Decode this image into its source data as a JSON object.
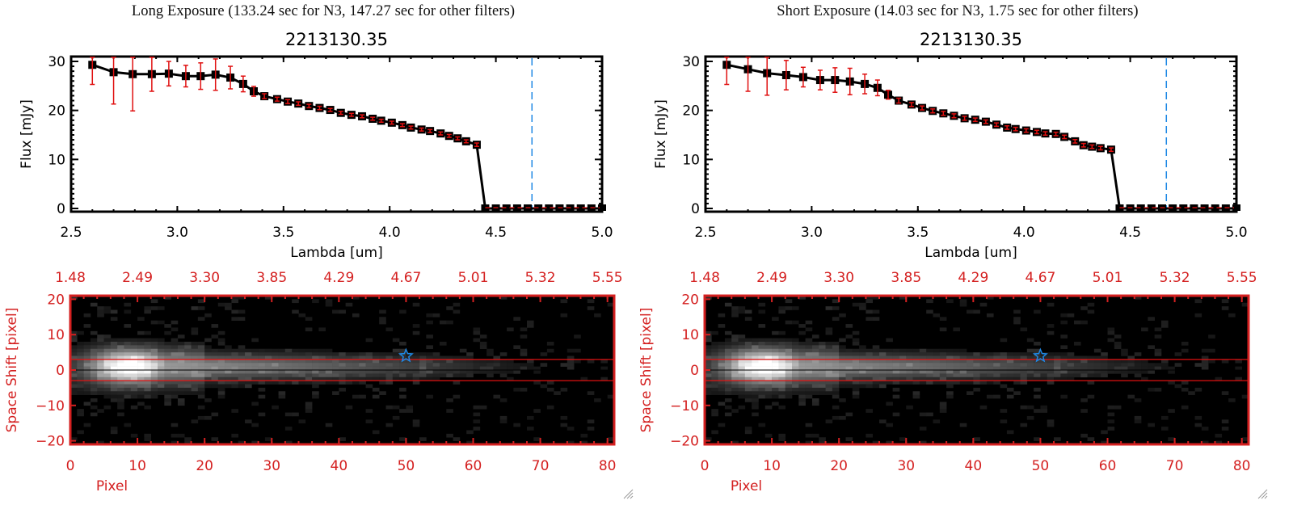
{
  "panels": [
    {
      "id": "long",
      "exposure_title": "Long Exposure (133.24 sec for N3, 147.27 sec for other filters)",
      "plot_title": "2213130.35"
    },
    {
      "id": "short",
      "exposure_title": "Short Exposure (14.03 sec for N3, 1.75 sec for other filters)",
      "plot_title": "2213130.35"
    }
  ],
  "colors": {
    "axis": "#000000",
    "errorbar": "#e01010",
    "image_axis": "#d42020",
    "marker_line": "#1e88e5",
    "aperture_line": "#e01010",
    "star": "#1e88e5"
  },
  "chart_data": [
    {
      "type": "line",
      "panel": "long",
      "title": "2213130.35",
      "xlabel": "Lambda [um]",
      "ylabel": "Flux [mJy]",
      "xlim": [
        2.5,
        5.0
      ],
      "ylim": [
        0,
        30
      ],
      "xticks": [
        "2.5",
        "3.0",
        "3.5",
        "4.0",
        "4.5",
        "5.0"
      ],
      "xtick_values": [
        2.5,
        3.0,
        3.5,
        4.0,
        4.5,
        5.0
      ],
      "yticks": [
        "0",
        "10",
        "20",
        "30"
      ],
      "ytick_values": [
        0,
        10,
        20,
        30
      ],
      "vline_x": 4.67,
      "zero_dashed_from": 4.45,
      "series": [
        {
          "name": "flux",
          "x": [
            2.6,
            2.7,
            2.79,
            2.88,
            2.96,
            3.04,
            3.11,
            3.18,
            3.25,
            3.31,
            3.36,
            3.41,
            3.47,
            3.52,
            3.57,
            3.62,
            3.67,
            3.72,
            3.77,
            3.82,
            3.87,
            3.92,
            3.96,
            4.01,
            4.06,
            4.1,
            4.15,
            4.19,
            4.24,
            4.28,
            4.32,
            4.36,
            4.41,
            4.45,
            4.5,
            4.55,
            4.6,
            4.65,
            4.7,
            4.75,
            4.8,
            4.85,
            4.9,
            4.95,
            5.0
          ],
          "y": [
            29.3,
            27.8,
            27.4,
            27.4,
            27.5,
            27.0,
            27.0,
            27.3,
            26.7,
            25.4,
            23.9,
            22.9,
            22.3,
            21.8,
            21.4,
            20.9,
            20.5,
            20.1,
            19.5,
            19.1,
            18.8,
            18.3,
            17.9,
            17.5,
            17.0,
            16.5,
            16.1,
            15.8,
            15.3,
            14.8,
            14.3,
            13.7,
            13.0,
            0,
            0,
            0,
            0,
            0,
            0,
            0,
            0,
            0,
            0,
            0,
            0
          ],
          "err": [
            4.0,
            6.5,
            7.5,
            3.5,
            2.5,
            2.2,
            2.7,
            3.2,
            2.3,
            1.6,
            1.0,
            0.5,
            0.4,
            0.4,
            0.35,
            0.35,
            0.35,
            0.3,
            0.3,
            0.3,
            0.3,
            0.3,
            0.3,
            0.3,
            0.3,
            0.3,
            0.3,
            0.3,
            0.3,
            0.3,
            0.3,
            0.3,
            0.35,
            0,
            0,
            0,
            0,
            0,
            0,
            0,
            0,
            0,
            0,
            0,
            0
          ]
        }
      ]
    },
    {
      "type": "line",
      "panel": "short",
      "title": "2213130.35",
      "xlabel": "Lambda [um]",
      "ylabel": "Flux [mJy]",
      "xlim": [
        2.5,
        5.0
      ],
      "ylim": [
        0,
        30
      ],
      "xticks": [
        "2.5",
        "3.0",
        "3.5",
        "4.0",
        "4.5",
        "5.0"
      ],
      "xtick_values": [
        2.5,
        3.0,
        3.5,
        4.0,
        4.5,
        5.0
      ],
      "yticks": [
        "0",
        "10",
        "20",
        "30"
      ],
      "ytick_values": [
        0,
        10,
        20,
        30
      ],
      "vline_x": 4.67,
      "zero_dashed_from": 4.45,
      "series": [
        {
          "name": "flux",
          "x": [
            2.6,
            2.7,
            2.79,
            2.88,
            2.96,
            3.04,
            3.11,
            3.18,
            3.25,
            3.31,
            3.36,
            3.41,
            3.47,
            3.52,
            3.57,
            3.62,
            3.67,
            3.72,
            3.77,
            3.82,
            3.87,
            3.92,
            3.96,
            4.01,
            4.06,
            4.1,
            4.15,
            4.19,
            4.24,
            4.28,
            4.32,
            4.36,
            4.41,
            4.45,
            4.5,
            4.55,
            4.6,
            4.65,
            4.7,
            4.75,
            4.8,
            4.85,
            4.9,
            4.95,
            5.0
          ],
          "y": [
            29.3,
            28.4,
            27.6,
            27.2,
            26.8,
            26.2,
            26.2,
            25.9,
            25.4,
            24.6,
            23.2,
            22.0,
            21.2,
            20.5,
            19.9,
            19.4,
            18.9,
            18.4,
            18.1,
            17.7,
            17.1,
            16.5,
            16.2,
            15.9,
            15.6,
            15.3,
            15.2,
            14.6,
            13.7,
            12.9,
            12.6,
            12.3,
            12.0,
            0,
            0,
            0,
            0,
            0,
            0,
            0,
            0,
            0,
            0,
            0,
            0
          ],
          "err": [
            4.0,
            4.5,
            4.5,
            3.0,
            2.0,
            2.0,
            2.5,
            2.7,
            2.0,
            1.6,
            0.9,
            0.5,
            0.4,
            0.4,
            0.4,
            0.4,
            0.4,
            0.4,
            0.35,
            0.35,
            0.35,
            0.35,
            0.35,
            0.35,
            0.35,
            0.35,
            0.35,
            0.35,
            0.35,
            0.35,
            0.35,
            0.35,
            0.35,
            0,
            0,
            0,
            0,
            0,
            0,
            0,
            0,
            0,
            0,
            0,
            0
          ]
        }
      ]
    },
    {
      "type": "heatmap",
      "panel": "long",
      "xlabel": "Pixel",
      "ylabel": "Space Shift [pixel]",
      "xlim": [
        0,
        81
      ],
      "ylim": [
        -21,
        21
      ],
      "xticks": [
        "0",
        "10",
        "20",
        "30",
        "40",
        "50",
        "60",
        "70",
        "80"
      ],
      "xtick_values": [
        0,
        10,
        20,
        30,
        40,
        50,
        60,
        70,
        80
      ],
      "yticks": [
        "-20",
        "-10",
        "0",
        "10",
        "20"
      ],
      "ytick_values": [
        -20,
        -10,
        0,
        10,
        20
      ],
      "top_ticks": [
        "1.48",
        "2.49",
        "3.30",
        "3.85",
        "4.29",
        "4.67",
        "5.01",
        "5.32",
        "5.55"
      ],
      "aperture_lines_y": [
        3,
        -3
      ],
      "center_line_y": 0,
      "star_marker": {
        "x": 50,
        "y": 4
      }
    },
    {
      "type": "heatmap",
      "panel": "short",
      "xlabel": "Pixel",
      "ylabel": "Space Shift [pixel]",
      "xlim": [
        0,
        81
      ],
      "ylim": [
        -21,
        21
      ],
      "xticks": [
        "0",
        "10",
        "20",
        "30",
        "40",
        "50",
        "60",
        "70",
        "80"
      ],
      "xtick_values": [
        0,
        10,
        20,
        30,
        40,
        50,
        60,
        70,
        80
      ],
      "yticks": [
        "-20",
        "-10",
        "0",
        "10",
        "20"
      ],
      "ytick_values": [
        -20,
        -10,
        0,
        10,
        20
      ],
      "top_ticks": [
        "1.48",
        "2.49",
        "3.30",
        "3.85",
        "4.29",
        "4.67",
        "5.01",
        "5.32",
        "5.55"
      ],
      "aperture_lines_y": [
        3,
        -3
      ],
      "center_line_y": 0,
      "star_marker": {
        "x": 50,
        "y": 4
      }
    }
  ]
}
